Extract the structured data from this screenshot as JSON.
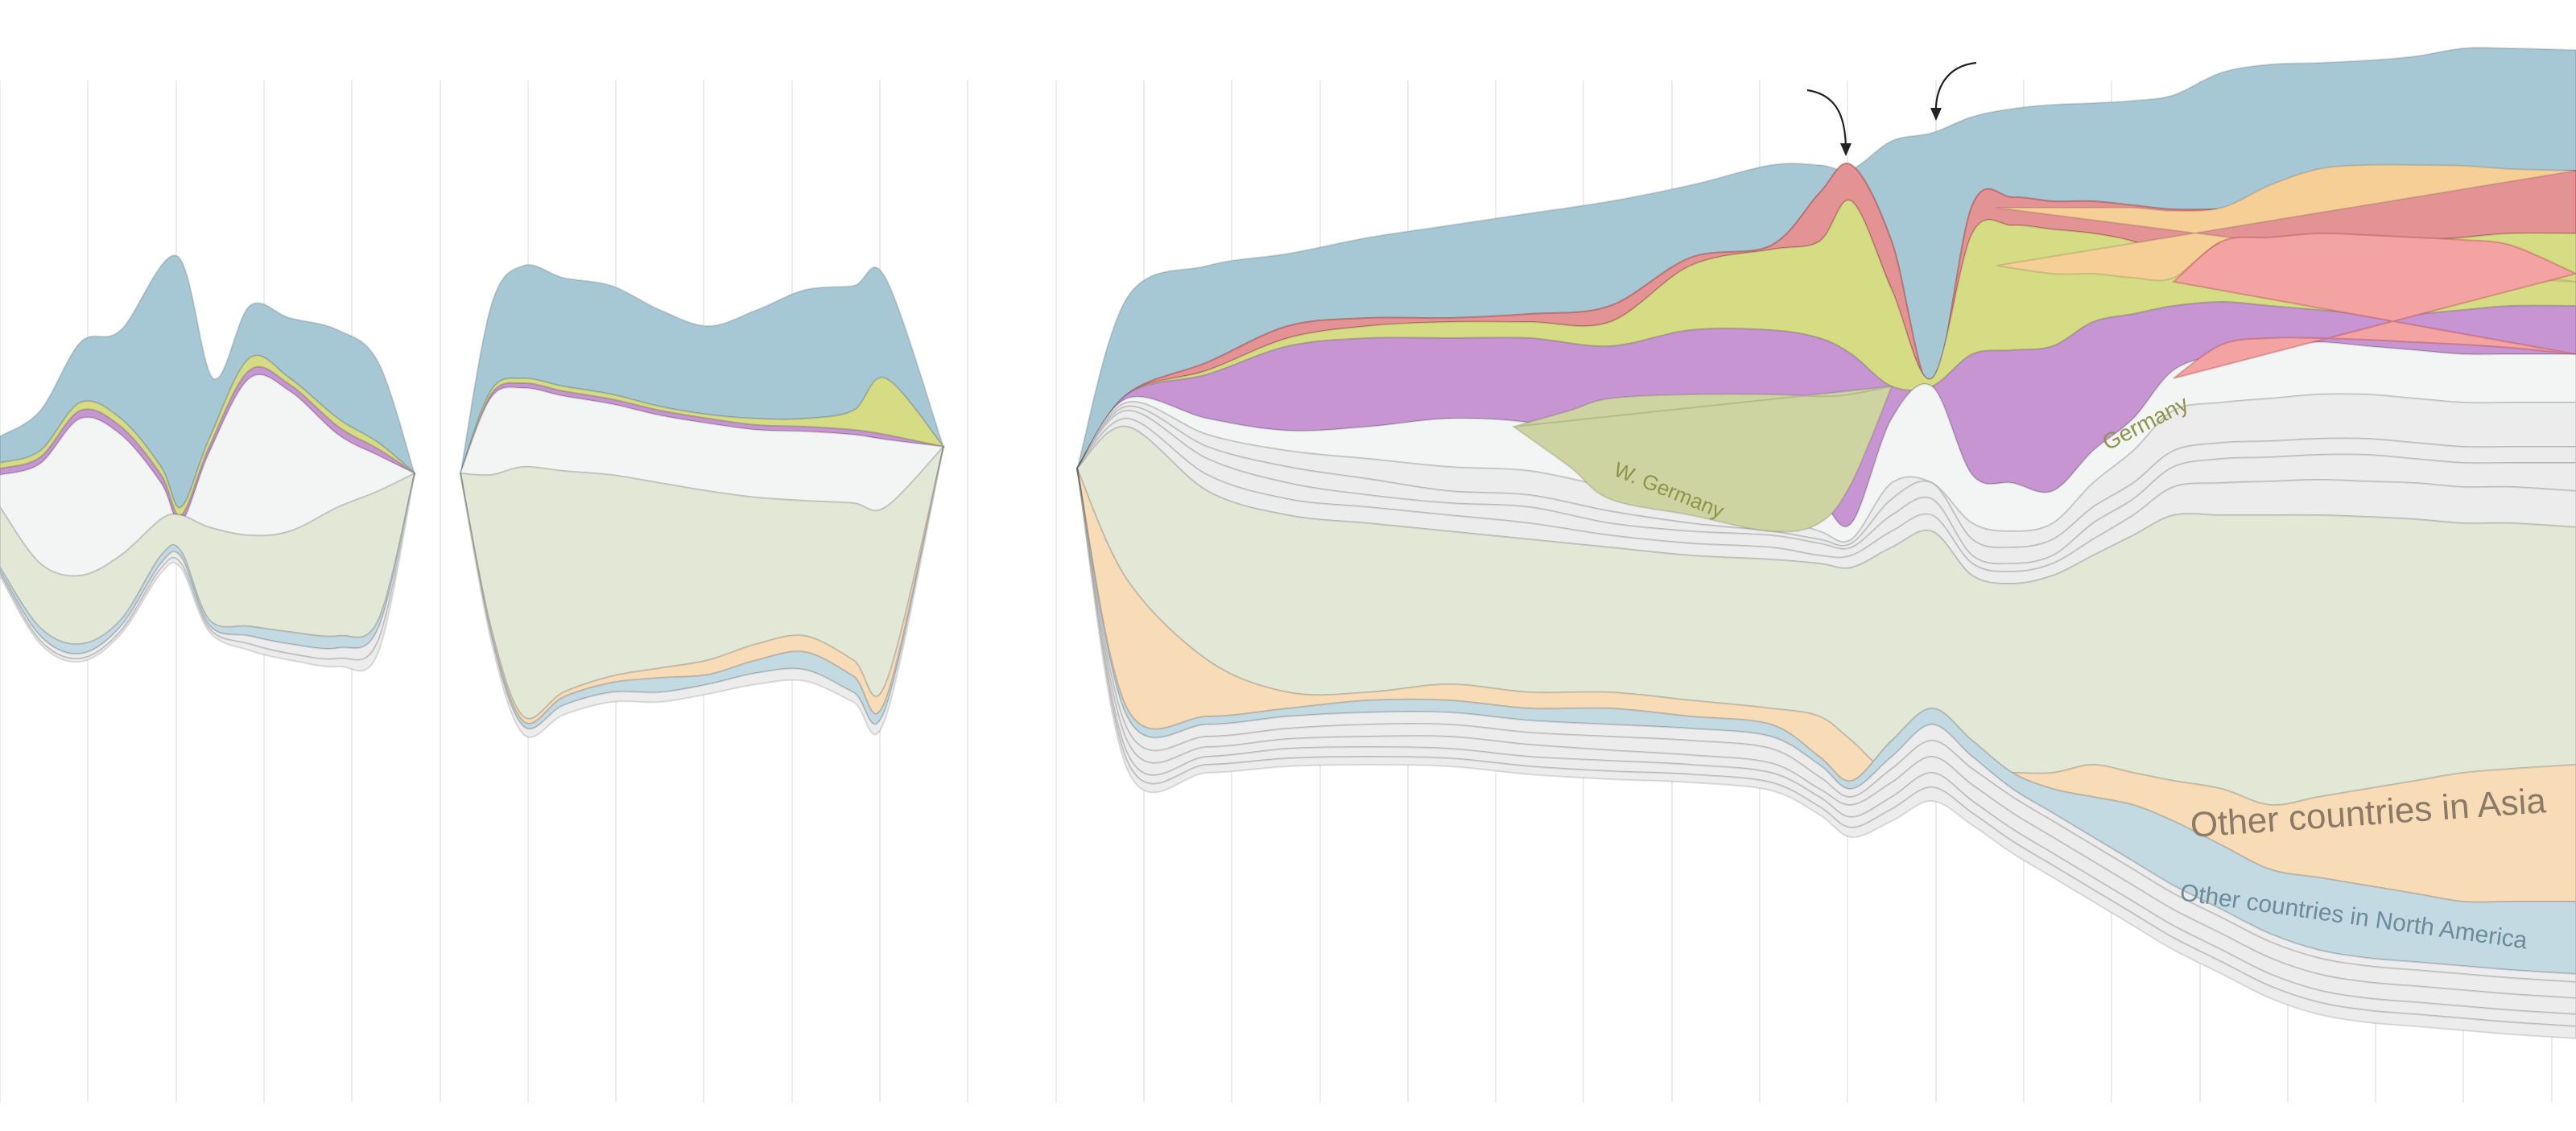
{
  "chart_data": {
    "type": "area",
    "title": "",
    "xlabel": "",
    "ylabel": "",
    "grid": true,
    "legend": "none",
    "colors": {
      "us": "#a6c8d4",
      "red": "#e49395",
      "pink": "#f4a3a3",
      "orange": "#f6cf97",
      "yellowgreen": "#d5dc84",
      "olive": "#cdd4a1",
      "purple": "#c695d2",
      "white": "#f3f4f4",
      "paleOlive": "#e3e7d6",
      "paleOrange": "#f8dcb8",
      "paleBlue": "#c4dae2",
      "lightGray": "#ececec"
    },
    "labels": {
      "w_germany": "W. Germany",
      "germany": "Germany",
      "asia": "Other countries in Asia",
      "north_america": "Other countries in North America"
    }
  }
}
